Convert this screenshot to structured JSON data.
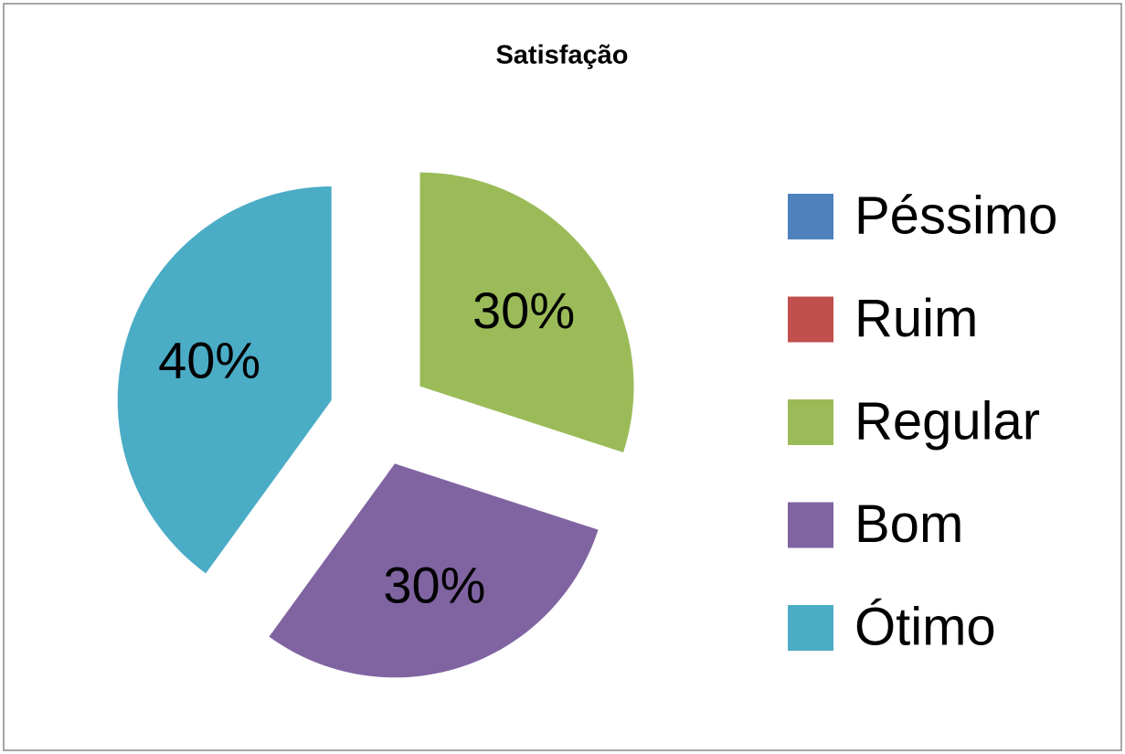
{
  "chart_data": {
    "type": "pie",
    "title": "Satisfação",
    "categories": [
      "Péssimo",
      "Ruim",
      "Regular",
      "Bom",
      "Ótimo"
    ],
    "values": [
      0,
      0,
      30,
      30,
      40
    ],
    "value_labels": [
      null,
      null,
      "30%",
      "30%",
      "40%"
    ],
    "colors": [
      "#4f81bd",
      "#c0504d",
      "#9bbb59",
      "#8064a2",
      "#4bacc6"
    ],
    "exploded": true,
    "legend": "right"
  }
}
